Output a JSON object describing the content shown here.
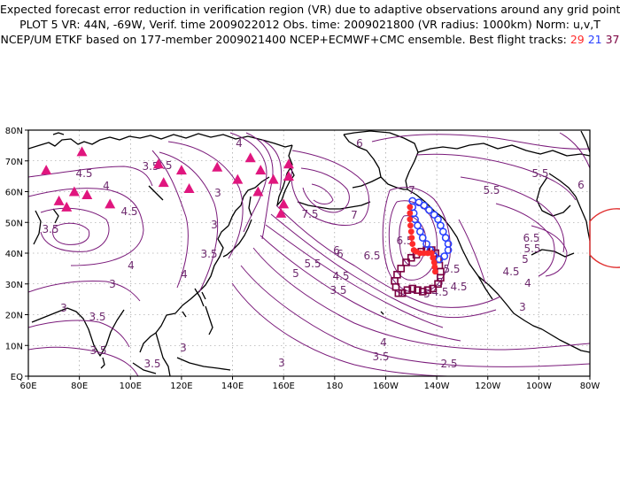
{
  "header": {
    "line1": "Expected forecast error reduction in verification region (VR) due to adaptive observations around any grid point.",
    "line2": "PLOT 5 VR: 44N, -69W, Verif. time 2009022012 Obs. time: 2009021800 (VR radius: 1000km) Norm: u,v,T",
    "line3_prefix": "NCEP/UM ETKF based on 177-member 2009021400 NCEP+ECMWF+CMC ensemble. Best flight tracks:",
    "track_a": "29",
    "track_b": "21",
    "track_c": "37"
  },
  "colors": {
    "contour": "#7a1a7a",
    "coast": "#000000",
    "grid": "#888888",
    "track_29": "#ff2a2a",
    "track_21": "#2840ff",
    "track_37": "#7a0040",
    "stations": "#e0167e",
    "verification_circle": "#e03030"
  },
  "axes": {
    "lat_labels": [
      "EQ",
      "10N",
      "20N",
      "30N",
      "40N",
      "50N",
      "60N",
      "70N",
      "80N"
    ],
    "lon_labels": [
      "60E",
      "80E",
      "100E",
      "120E",
      "140E",
      "160E",
      "180",
      "160W",
      "140W",
      "120W",
      "100W",
      "80W"
    ]
  },
  "contour_labels": [
    "4.5",
    "4",
    "4.5",
    "3.5",
    "4",
    "3.5",
    "3",
    "3.5",
    "3",
    "4",
    "3",
    "3.5",
    "3.5",
    "3",
    "3.5",
    "3",
    "4",
    "4.5",
    "5",
    "5.5",
    "6",
    "6.5",
    "7",
    "7.5",
    "7",
    "6",
    "6.5",
    "5.5",
    "5",
    "4.5",
    "3.5",
    "5",
    "4.5",
    "4",
    "3.5",
    "2.5",
    "3.5",
    "4",
    "3",
    "5.5",
    "6.5",
    "5.5",
    "5",
    "4.5",
    "6",
    "3",
    "5.5",
    "6"
  ],
  "icons": {
    "stations": "triangle-marker",
    "track_29": "filled-circle-marker",
    "track_21": "open-circle-marker",
    "track_37": "open-square-marker"
  },
  "stations": [
    {
      "lon": 67,
      "lat": 67
    },
    {
      "lon": 72,
      "lat": 57
    },
    {
      "lon": 75,
      "lat": 55
    },
    {
      "lon": 78,
      "lat": 60
    },
    {
      "lon": 81,
      "lat": 73
    },
    {
      "lon": 83,
      "lat": 59
    },
    {
      "lon": 92,
      "lat": 56
    },
    {
      "lon": 111,
      "lat": 69
    },
    {
      "lon": 113,
      "lat": 63
    },
    {
      "lon": 120,
      "lat": 67
    },
    {
      "lon": 123,
      "lat": 61
    },
    {
      "lon": 134,
      "lat": 68
    },
    {
      "lon": 142,
      "lat": 64
    },
    {
      "lon": 147,
      "lat": 71
    },
    {
      "lon": 150,
      "lat": 60
    },
    {
      "lon": 151,
      "lat": 67
    },
    {
      "lon": 156,
      "lat": 64
    },
    {
      "lon": 159,
      "lat": 53
    },
    {
      "lon": 160,
      "lat": 56
    },
    {
      "lon": 162,
      "lat": 69
    },
    {
      "lon": 162,
      "lat": 65
    }
  ],
  "tracks": {
    "track_29": [
      [
        -150.5,
        55
      ],
      [
        -150.5,
        53
      ],
      [
        -150.5,
        51
      ],
      [
        -150.3,
        49
      ],
      [
        -150,
        47
      ],
      [
        -149.8,
        45
      ],
      [
        -149.5,
        43
      ],
      [
        -149,
        41
      ],
      [
        -148,
        40.5
      ],
      [
        -146.5,
        40
      ],
      [
        -145,
        40
      ],
      [
        -143.5,
        40
      ],
      [
        -142,
        40
      ],
      [
        -141.5,
        38.5
      ],
      [
        -141,
        37
      ],
      [
        -140.8,
        35.5
      ],
      [
        -140.6,
        34
      ]
    ],
    "track_21": [
      [
        -149.5,
        57
      ],
      [
        -147,
        56.5
      ],
      [
        -145,
        55.5
      ],
      [
        -143,
        54
      ],
      [
        -141,
        52.5
      ],
      [
        -139.5,
        51
      ],
      [
        -138.5,
        49
      ],
      [
        -137.5,
        47
      ],
      [
        -136.5,
        45
      ],
      [
        -135.5,
        43
      ],
      [
        -135.5,
        41
      ],
      [
        -137,
        39
      ],
      [
        -139,
        38
      ],
      [
        -141,
        39
      ],
      [
        -142.5,
        41
      ],
      [
        -144,
        43
      ],
      [
        -145.5,
        45
      ],
      [
        -146.5,
        47
      ],
      [
        -147.5,
        49
      ],
      [
        -148.5,
        51
      ],
      [
        -149,
        53
      ],
      [
        -149.5,
        55
      ]
    ],
    "track_37": [
      [
        -155,
        27
      ],
      [
        -156,
        29
      ],
      [
        -156.5,
        31
      ],
      [
        -155.5,
        33
      ],
      [
        -154,
        35
      ],
      [
        -152,
        37
      ],
      [
        -150,
        38.5
      ],
      [
        -148,
        39.5
      ],
      [
        -146,
        40.5
      ],
      [
        -144,
        41
      ],
      [
        -142,
        41
      ],
      [
        -140.5,
        40
      ],
      [
        -139.5,
        38
      ],
      [
        -139,
        36
      ],
      [
        -138.5,
        34
      ],
      [
        -138.5,
        32
      ],
      [
        -139.5,
        30
      ],
      [
        -141.5,
        28.5
      ],
      [
        -143.5,
        28
      ],
      [
        -145.5,
        27.5
      ],
      [
        -147.5,
        28
      ],
      [
        -149.5,
        28.5
      ],
      [
        -151.5,
        28
      ],
      [
        -153.5,
        27
      ]
    ]
  }
}
